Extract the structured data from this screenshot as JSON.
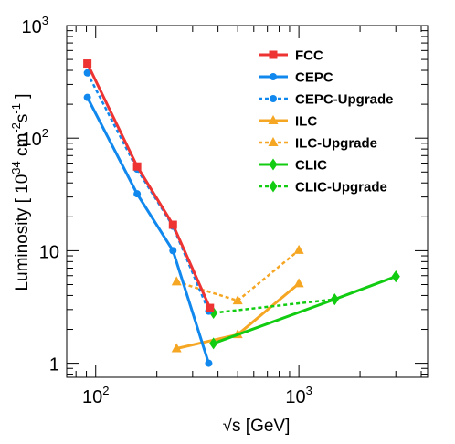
{
  "chart_data": {
    "type": "line",
    "xlabel": "√s [GeV]",
    "ylabel": "Luminosity [ 10³⁴ cm⁻²s⁻¹ ]",
    "ylabel_parts": {
      "pre": "Luminosity [ 10",
      "exp1": "34",
      "mid": " cm",
      "exp2": "-2",
      "mid2": "s",
      "exp3": "-1",
      "post": " ]"
    },
    "x_scale": "log",
    "y_scale": "log",
    "xlim": [
      72,
      4300
    ],
    "ylim": [
      0.75,
      1000
    ],
    "x_ticks": [
      {
        "value": 100,
        "base": "10",
        "exp": "2"
      },
      {
        "value": 1000,
        "base": "10",
        "exp": "3"
      }
    ],
    "y_ticks": [
      {
        "value": 1,
        "base": "1",
        "exp": ""
      },
      {
        "value": 10,
        "base": "10",
        "exp": ""
      },
      {
        "value": 100,
        "base": "10",
        "exp": "2"
      },
      {
        "value": 1000,
        "base": "10",
        "exp": "3"
      }
    ],
    "grid": false,
    "legend_position": "top-right",
    "series": [
      {
        "name": "FCC",
        "color": "#ee3333",
        "dash": false,
        "marker": "square",
        "x": [
          91,
          160,
          240,
          365
        ],
        "y": [
          460,
          56,
          17,
          3.1
        ]
      },
      {
        "name": "CEPC",
        "color": "#1188ee",
        "dash": false,
        "marker": "circle",
        "x": [
          91,
          160,
          240,
          360
        ],
        "y": [
          230,
          32,
          10,
          1.0
        ]
      },
      {
        "name": "CEPC-Upgrade",
        "color": "#1188ee",
        "dash": true,
        "marker": "circle",
        "x": [
          91,
          160,
          240,
          360
        ],
        "y": [
          380,
          53,
          16.5,
          2.9
        ]
      },
      {
        "name": "ILC",
        "color": "#f5a623",
        "dash": false,
        "marker": "triangle",
        "x": [
          250,
          500,
          1000
        ],
        "y": [
          1.35,
          1.8,
          5.1
        ]
      },
      {
        "name": "ILC-Upgrade",
        "color": "#f5a623",
        "dash": true,
        "marker": "triangle",
        "x": [
          250,
          500,
          1000
        ],
        "y": [
          5.3,
          3.6,
          10.1
        ]
      },
      {
        "name": "CLIC",
        "color": "#11cc11",
        "dash": false,
        "marker": "diamond",
        "x": [
          380,
          1500,
          3000
        ],
        "y": [
          1.5,
          3.7,
          5.9
        ]
      },
      {
        "name": "CLIC-Upgrade",
        "color": "#11cc11",
        "dash": true,
        "marker": "diamond",
        "x": [
          380,
          1500,
          3000
        ],
        "y": [
          2.8,
          3.7,
          5.9
        ]
      }
    ]
  }
}
